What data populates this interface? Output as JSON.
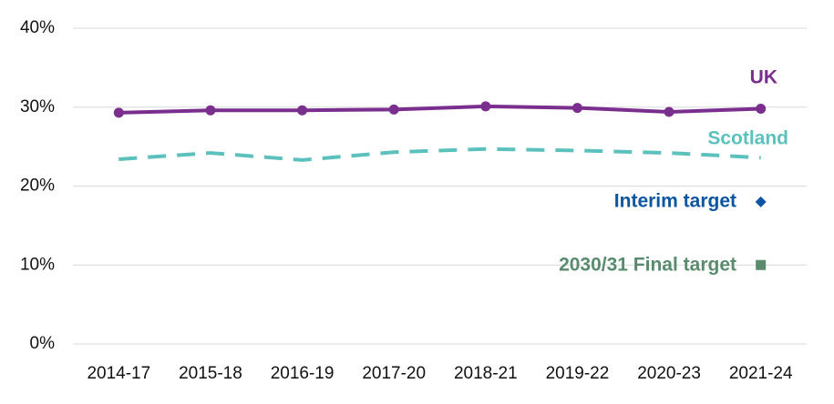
{
  "chart_data": {
    "type": "line",
    "categories": [
      "2014-17",
      "2015-18",
      "2016-19",
      "2017-20",
      "2018-21",
      "2019-22",
      "2020-23",
      "2021-24"
    ],
    "series": [
      {
        "name": "UK",
        "color": "#7a2e8e",
        "style": "solid",
        "marker": "circle",
        "values": [
          29.3,
          29.6,
          29.6,
          29.7,
          30.1,
          29.9,
          29.4,
          29.8
        ]
      },
      {
        "name": "Scotland",
        "color": "#5cc0bd",
        "style": "dashed",
        "marker": "none",
        "values": [
          23.4,
          24.2,
          23.3,
          24.3,
          24.7,
          24.5,
          24.2,
          23.6
        ]
      },
      {
        "name": "Interim target",
        "color": "#0c55a0",
        "style": "none",
        "marker": "diamond",
        "values": [
          null,
          null,
          null,
          null,
          null,
          null,
          null,
          18
        ]
      },
      {
        "name": "2030/31 Final target",
        "color": "#5a8b6e",
        "style": "none",
        "marker": "square",
        "values": [
          null,
          null,
          null,
          null,
          null,
          null,
          null,
          10
        ]
      }
    ],
    "ylim": [
      0,
      40
    ],
    "yticks": [
      {
        "value": 0,
        "label": "0%"
      },
      {
        "value": 10,
        "label": "10%"
      },
      {
        "value": 20,
        "label": "20%"
      },
      {
        "value": 30,
        "label": "30%"
      },
      {
        "value": 40,
        "label": "40%"
      }
    ],
    "grid": true
  }
}
